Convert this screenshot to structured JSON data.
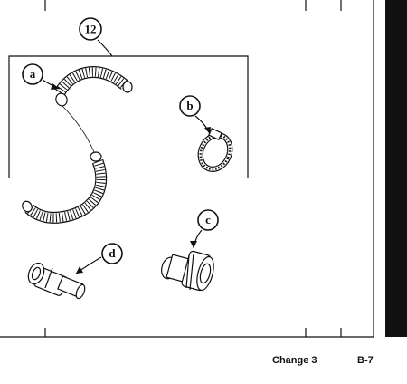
{
  "figure": {
    "item_number": "12",
    "callouts": {
      "a": "a",
      "b": "b",
      "c": "c",
      "d": "d"
    }
  },
  "footer": {
    "change": "Change 3",
    "page": "B-7"
  },
  "colors": {
    "ink": "#111111",
    "paper": "#ffffff"
  }
}
